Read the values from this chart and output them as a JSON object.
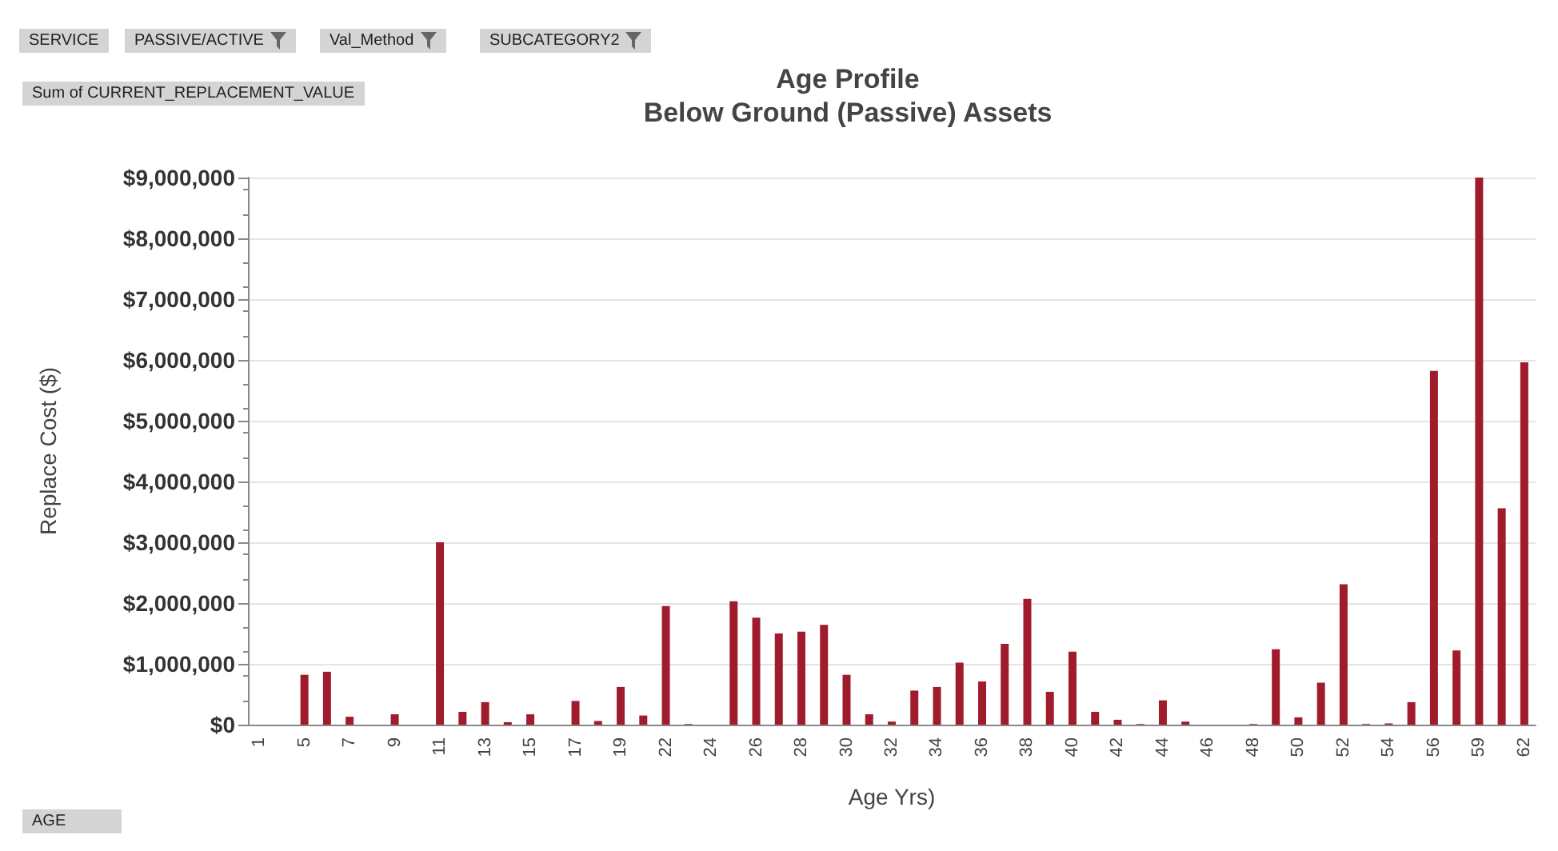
{
  "chart_data": {
    "type": "bar",
    "title": "Age Profile",
    "subtitle": "Below Ground (Passive) Assets",
    "xlabel": "Age Yrs)",
    "ylabel": "Replace Cost ($)",
    "annotations": [
      "SERVICE",
      "PASSIVE/ACTIVE",
      "Val_Method",
      "SUBCATEGORY2",
      "Sum of CURRENT_REPLACEMENT_VALUE",
      "AGE"
    ],
    "categories": [
      "1",
      null,
      "5",
      null,
      "7",
      null,
      "9",
      null,
      "11",
      null,
      "13",
      null,
      "15",
      null,
      "17",
      null,
      "19",
      null,
      "22",
      null,
      "24",
      null,
      "26",
      null,
      "28",
      null,
      "30",
      null,
      "32",
      null,
      "34",
      null,
      "36",
      null,
      "38",
      null,
      "40",
      null,
      "42",
      null,
      "44",
      null,
      "46",
      null,
      "48",
      null,
      "50",
      null,
      "52",
      null,
      "54",
      null,
      "56",
      null,
      "59",
      null,
      "62"
    ],
    "values": [
      0,
      0,
      820000,
      870000,
      130000,
      0,
      170000,
      0,
      3000000,
      210000,
      370000,
      40000,
      170000,
      0,
      390000,
      60000,
      620000,
      150000,
      1950000,
      10000,
      0,
      2030000,
      1760000,
      1500000,
      1530000,
      1640000,
      820000,
      170000,
      50000,
      560000,
      620000,
      1020000,
      710000,
      1330000,
      2070000,
      540000,
      1200000,
      210000,
      80000,
      10000,
      400000,
      50000,
      0,
      0,
      10000,
      1240000,
      120000,
      690000,
      2310000,
      10000,
      20000,
      370000,
      5820000,
      1220000,
      9000000,
      3560000,
      5960000
    ],
    "color": "#a01c2c",
    "ylim": [
      0,
      9000000
    ],
    "yticks": [
      {
        "value": 0,
        "label": "$0"
      },
      {
        "value": 1000000,
        "label": "$1,000,000"
      },
      {
        "value": 2000000,
        "label": "$2,000,000"
      },
      {
        "value": 3000000,
        "label": "$3,000,000"
      },
      {
        "value": 4000000,
        "label": "$4,000,000"
      },
      {
        "value": 5000000,
        "label": "$5,000,000"
      },
      {
        "value": 6000000,
        "label": "$6,000,000"
      },
      {
        "value": 7000000,
        "label": "$7,000,000"
      },
      {
        "value": 8000000,
        "label": "$8,000,000"
      },
      {
        "value": 9000000,
        "label": "$9,000,000"
      }
    ],
    "grid": "y"
  }
}
